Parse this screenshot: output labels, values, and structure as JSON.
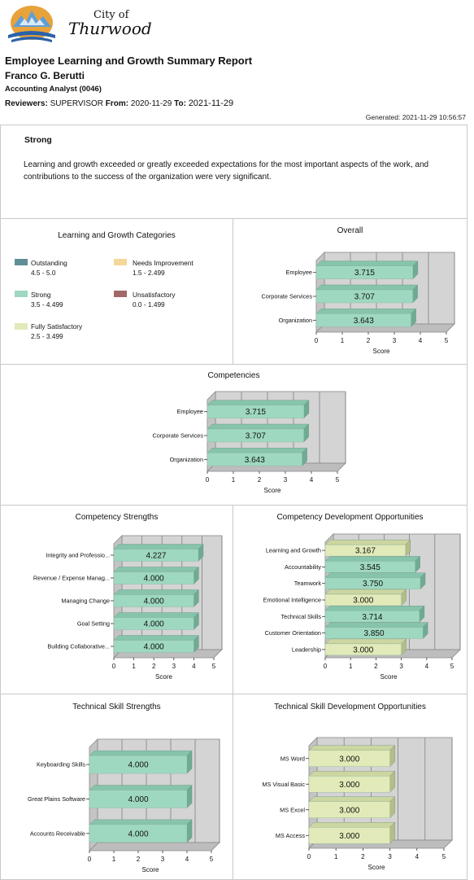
{
  "header": {
    "logo_text_small": "City of",
    "logo_text_large": "Thurwood",
    "report_title": "Employee Learning and Growth Summary Report",
    "employee_name": "Franco G. Berutti",
    "position": "Accounting Analyst (0046)",
    "reviewers_label": "Reviewers:",
    "reviewers_value": "SUPERVISOR",
    "from_label": "From:",
    "from_value": "2020-11-29",
    "to_label": "To:",
    "to_value": "2021-11-29",
    "generated": "Generated: 2021-11-29 10:56:57"
  },
  "rating": {
    "title": "Strong",
    "description": "Learning and growth exceeded or greatly exceeded expectations for the most important aspects of the work, and contributions to the success of the organization were very significant."
  },
  "legend": {
    "title": "Learning and Growth Categories",
    "items": [
      {
        "name": "Outstanding",
        "range": "4.5 - 5.0",
        "color": "#5f8f96"
      },
      {
        "name": "Needs Improvement",
        "range": "1.5 - 2.499",
        "color": "#f6d79a"
      },
      {
        "name": "Strong",
        "range": "3.5 - 4.499",
        "color": "#9ed8c0"
      },
      {
        "name": "Unsatisfactory",
        "range": "0.0 - 1.499",
        "color": "#a06868"
      },
      {
        "name": "Fully Satisfactory",
        "range": "2.5 - 3.499",
        "color": "#e1eab8"
      }
    ]
  },
  "colors": {
    "strong_front": "#9ed8c0",
    "strong_side": "#6fab93",
    "strong_top": "#86c4ab",
    "fs_front": "#e1eab8",
    "fs_side": "#b4bd88",
    "fs_top": "#ccd6a0",
    "wall": "#d4d4d4",
    "floor": "#bdbdbd"
  },
  "chart_data": [
    {
      "id": "overall",
      "type": "bar",
      "title": "Overall",
      "xlabel": "Score",
      "xlim": [
        0,
        5
      ],
      "ticks": [
        "0",
        "1",
        "2",
        "3",
        "4",
        "5"
      ],
      "categories": [
        "Employee",
        "Corporate Services",
        "Organization"
      ],
      "values": [
        3.715,
        3.707,
        3.643
      ],
      "value_labels": [
        "3.715",
        "3.707",
        "3.643"
      ],
      "bar_category": [
        "strong",
        "strong",
        "strong"
      ]
    },
    {
      "id": "competencies",
      "type": "bar",
      "title": "Competencies",
      "xlabel": "Score",
      "xlim": [
        0,
        5
      ],
      "ticks": [
        "0",
        "1",
        "2",
        "3",
        "4",
        "5"
      ],
      "categories": [
        "Employee",
        "Corporate Services",
        "Organization"
      ],
      "values": [
        3.715,
        3.707,
        3.643
      ],
      "value_labels": [
        "3.715",
        "3.707",
        "3.643"
      ],
      "bar_category": [
        "strong",
        "strong",
        "strong"
      ]
    },
    {
      "id": "comp_strengths",
      "type": "bar",
      "title": "Competency Strengths",
      "xlabel": "Score",
      "xlim": [
        0,
        5
      ],
      "ticks": [
        "0",
        "1",
        "2",
        "3",
        "4",
        "5"
      ],
      "categories": [
        "Integrity and Professio...",
        "Revenue / Expense Manag...",
        "Managing Change",
        "Goal Setting",
        "Building Collaborative..."
      ],
      "values": [
        4.227,
        4.0,
        4.0,
        4.0,
        4.0
      ],
      "value_labels": [
        "4.227",
        "4.000",
        "4.000",
        "4.000",
        "4.000"
      ],
      "bar_category": [
        "strong",
        "strong",
        "strong",
        "strong",
        "strong"
      ]
    },
    {
      "id": "comp_dev",
      "type": "bar",
      "title": "Competency Development Opportunities",
      "xlabel": "Score",
      "xlim": [
        0,
        5
      ],
      "ticks": [
        "0",
        "1",
        "2",
        "3",
        "4",
        "5"
      ],
      "categories": [
        "Learning and Growth",
        "Accountability",
        "Teamwork",
        "Emotional Intelligence",
        "Technical Skills",
        "Customer Orientation",
        "Leadership"
      ],
      "values": [
        3.167,
        3.545,
        3.75,
        3.0,
        3.714,
        3.85,
        3.0
      ],
      "value_labels": [
        "3.167",
        "3.545",
        "3.750",
        "3.000",
        "3.714",
        "3.850",
        "3.000"
      ],
      "bar_category": [
        "fs",
        "strong",
        "strong",
        "fs",
        "strong",
        "strong",
        "fs"
      ]
    },
    {
      "id": "tech_strengths",
      "type": "bar",
      "title": "Technical Skill Strengths",
      "xlabel": "Score",
      "xlim": [
        0,
        5
      ],
      "ticks": [
        "0",
        "1",
        "2",
        "3",
        "4",
        "5"
      ],
      "categories": [
        "Keyboarding Skills",
        "Great Plains Software",
        "Accounts Receivable"
      ],
      "values": [
        4.0,
        4.0,
        4.0
      ],
      "value_labels": [
        "4.000",
        "4.000",
        "4.000"
      ],
      "bar_category": [
        "strong",
        "strong",
        "strong"
      ]
    },
    {
      "id": "tech_dev",
      "type": "bar",
      "title": "Technical Skill Development Opportunities",
      "xlabel": "Score",
      "xlim": [
        0,
        5
      ],
      "ticks": [
        "0",
        "1",
        "2",
        "3",
        "4",
        "5"
      ],
      "categories": [
        "MS Word",
        "MS Visual Basic",
        "MS Excel",
        "MS Access"
      ],
      "values": [
        3.0,
        3.0,
        3.0,
        3.0
      ],
      "value_labels": [
        "3.000",
        "3.000",
        "3.000",
        "3.000"
      ],
      "bar_category": [
        "fs",
        "fs",
        "fs",
        "fs"
      ]
    }
  ]
}
